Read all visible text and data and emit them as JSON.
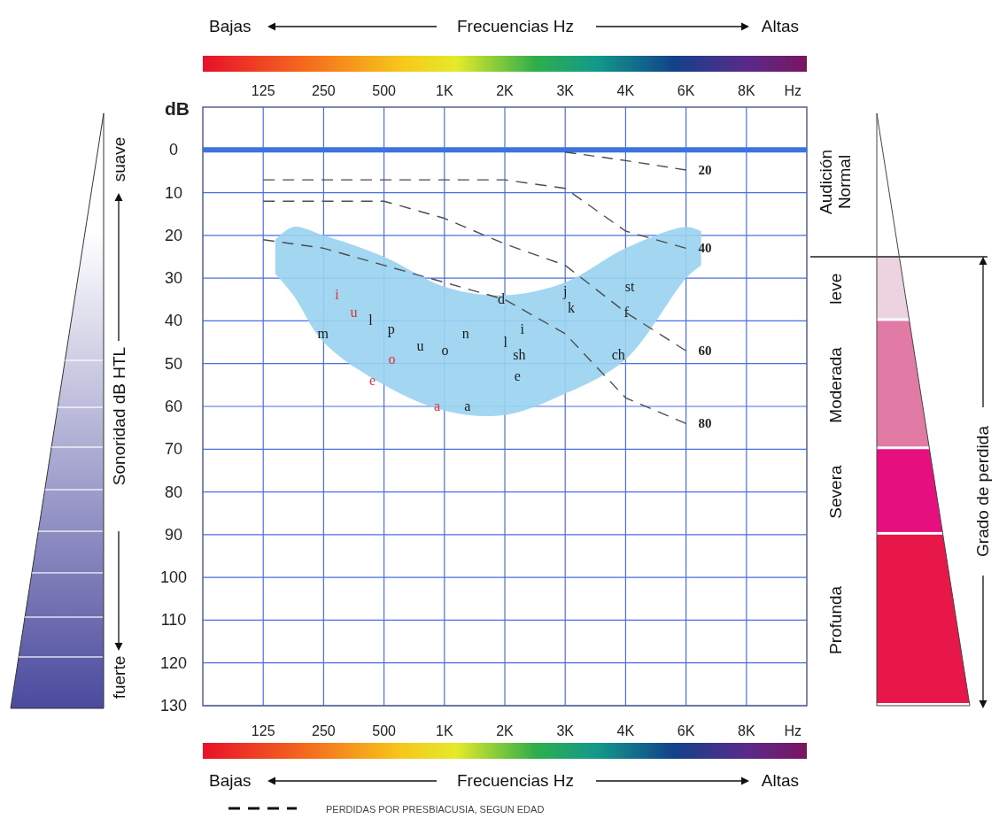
{
  "chart_data": {
    "type": "line",
    "ylabel": "dB",
    "xlabel": "Hz",
    "categories": [
      "125",
      "250",
      "500",
      "1K",
      "2K",
      "3K",
      "4K",
      "6K",
      "8K"
    ],
    "ylim": [
      130,
      -10
    ],
    "yticks": [
      0,
      10,
      20,
      30,
      40,
      50,
      60,
      70,
      80,
      90,
      100,
      110,
      120,
      130
    ],
    "grid": true,
    "line_style": "dashed",
    "series": [
      {
        "name": "20",
        "color": "#4d4d4d",
        "values": [
          null,
          null,
          null,
          null,
          null,
          0.5,
          2.5,
          4.7,
          null
        ]
      },
      {
        "name": "40",
        "color": "#4d4d4d",
        "values": [
          7,
          7,
          7,
          7,
          7,
          9,
          19,
          23,
          null
        ]
      },
      {
        "name": "60",
        "color": "#4d4d4d",
        "values": [
          12,
          12,
          12,
          16,
          22,
          27,
          38,
          47,
          null
        ]
      },
      {
        "name": "80",
        "color": "#4d4d4d",
        "values": [
          21,
          23,
          27,
          31,
          35,
          43,
          58,
          64,
          null
        ]
      }
    ],
    "ref_lines": [
      {
        "axis": "y",
        "value": 0,
        "color": "#3b73e0"
      }
    ],
    "annotations": [
      "Bajas",
      "Frecuencias Hz",
      "Altas",
      "Bajas",
      "Frecuencias Hz",
      "Altas",
      "Sonoridad dB HTL",
      "suave",
      "fuerte",
      "Grado de perdida",
      "PERDIDAS POR PRESBIACUSIA, SEGUN EDAD",
      "Audición\nNormal",
      "leve",
      "Moderada",
      "Severa",
      "Profunda",
      "i",
      "u",
      "l",
      "m",
      "p",
      "o",
      "u",
      "o",
      "n",
      "e",
      "a",
      "a",
      "d",
      "i",
      "l",
      "sh",
      "e",
      "j",
      "k",
      "st",
      "f",
      "ch"
    ]
  }
}
